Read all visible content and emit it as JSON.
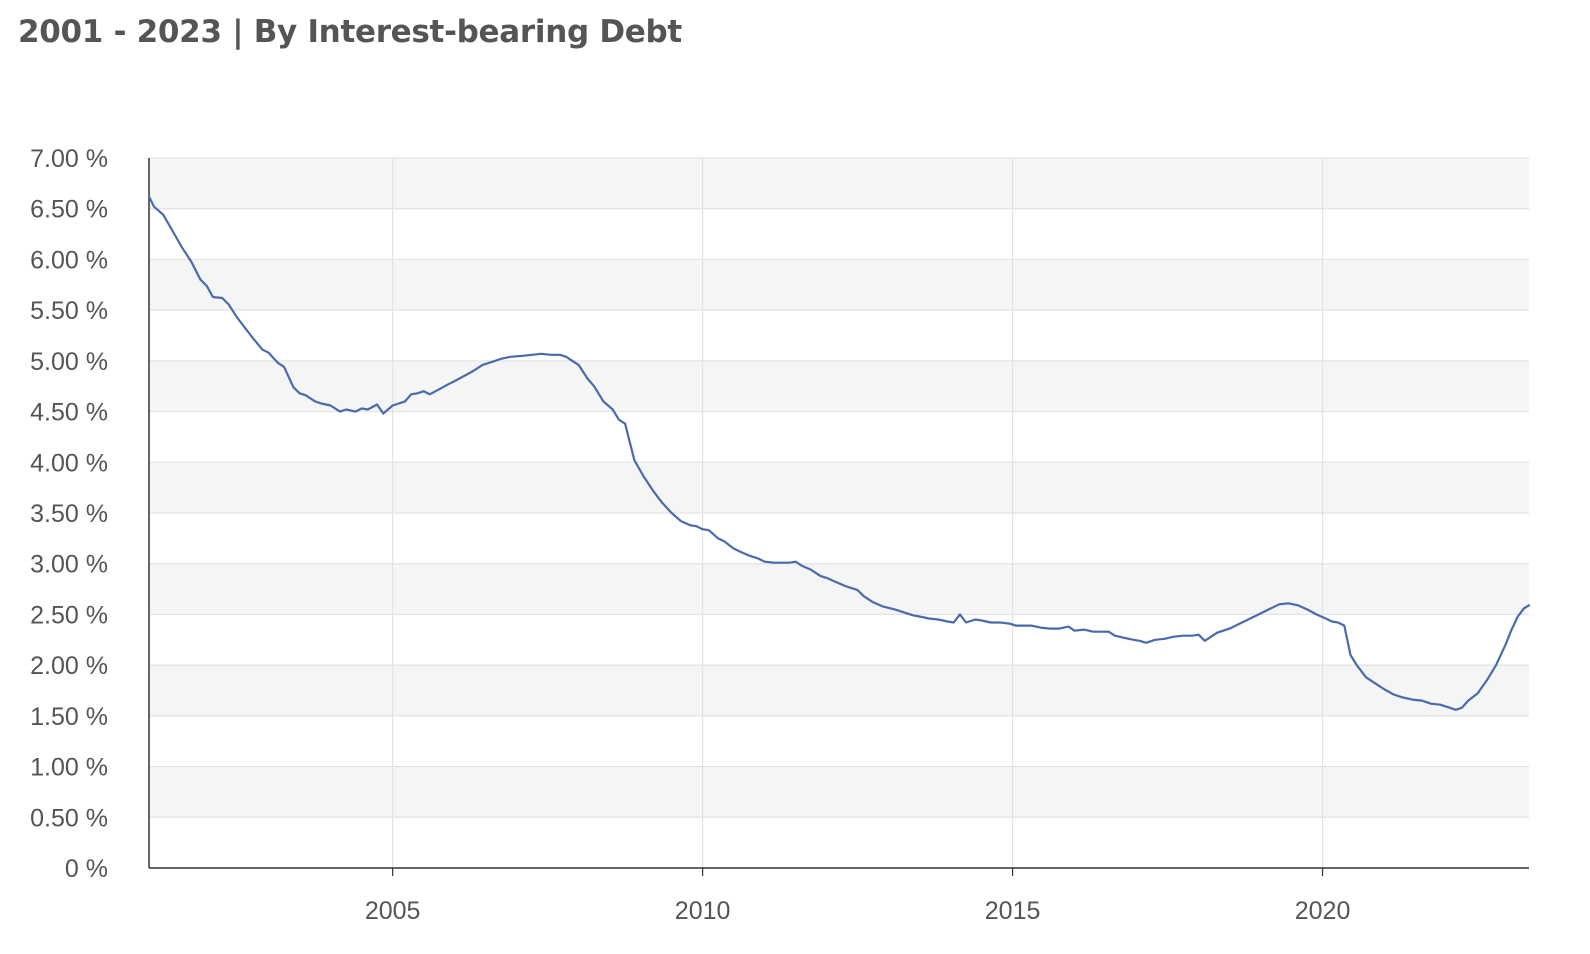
{
  "title": "2001 - 2023 | By Interest-bearing Debt",
  "colors": {
    "line": "#4a6aab",
    "band": "#f5f5f5",
    "grid": "#e3e3e3",
    "axis": "#333333",
    "text": "#555555"
  },
  "chart_data": {
    "type": "line",
    "title": "2001 - 2023 | By Interest-bearing Debt",
    "xlabel": "",
    "ylabel": "",
    "xlim": [
      2001.07,
      2023.33
    ],
    "ylim": [
      0,
      7.0
    ],
    "y_ticks": [
      0,
      0.5,
      1.0,
      1.5,
      2.0,
      2.5,
      3.0,
      3.5,
      4.0,
      4.5,
      5.0,
      5.5,
      6.0,
      6.5,
      7.0
    ],
    "y_tick_labels": [
      "0 %",
      "0.50 %",
      "1.00 %",
      "1.50 %",
      "2.00 %",
      "2.50 %",
      "3.00 %",
      "3.50 %",
      "4.00 %",
      "4.50 %",
      "5.00 %",
      "5.50 %",
      "6.00 %",
      "6.50 %",
      "7.00 %"
    ],
    "x_ticks": [
      2005,
      2010,
      2015,
      2020
    ],
    "x_tick_labels": [
      "2005",
      "2010",
      "2015",
      "2020"
    ],
    "grid": true,
    "alternating_bands": true,
    "legend": "none",
    "series": [
      {
        "x": [
          2001.07,
          2001.15,
          2001.3,
          2001.45,
          2001.6,
          2001.75,
          2001.9,
          2002.0,
          2002.1,
          2002.25,
          2002.35,
          2002.5,
          2002.6,
          2002.75,
          2002.9,
          2003.0,
          2003.15,
          2003.25,
          2003.4,
          2003.5,
          2003.6,
          2003.75,
          2003.85,
          2004.0,
          2004.15,
          2004.25,
          2004.4,
          2004.5,
          2004.6,
          2004.75,
          2004.85,
          2005.0,
          2005.1,
          2005.2,
          2005.3,
          2005.4,
          2005.5,
          2005.6,
          2005.75,
          2005.9,
          2006.0,
          2006.15,
          2006.3,
          2006.45,
          2006.6,
          2006.75,
          2006.9,
          2007.1,
          2007.25,
          2007.4,
          2007.55,
          2007.7,
          2007.8,
          2007.9,
          2008.0,
          2008.15,
          2008.25,
          2008.4,
          2008.55,
          2008.65,
          2008.75,
          2008.9,
          2009.05,
          2009.2,
          2009.35,
          2009.5,
          2009.65,
          2009.8,
          2009.9,
          2010.0,
          2010.1,
          2010.25,
          2010.35,
          2010.5,
          2010.6,
          2010.75,
          2010.9,
          2011.0,
          2011.15,
          2011.3,
          2011.4,
          2011.5,
          2011.6,
          2011.75,
          2011.9,
          2012.0,
          2012.15,
          2012.3,
          2012.5,
          2012.6,
          2012.75,
          2012.9,
          2013.1,
          2013.25,
          2013.4,
          2013.5,
          2013.65,
          2013.8,
          2013.95,
          2014.05,
          2014.15,
          2014.25,
          2014.4,
          2014.5,
          2014.65,
          2014.8,
          2014.95,
          2015.05,
          2015.15,
          2015.3,
          2015.45,
          2015.6,
          2015.75,
          2015.9,
          2016.0,
          2016.15,
          2016.3,
          2016.4,
          2016.55,
          2016.65,
          2016.8,
          2016.95,
          2017.05,
          2017.15,
          2017.3,
          2017.45,
          2017.6,
          2017.75,
          2017.9,
          2018.0,
          2018.1,
          2018.3,
          2018.5,
          2018.7,
          2018.9,
          2019.1,
          2019.3,
          2019.45,
          2019.6,
          2019.75,
          2019.9,
          2020.05,
          2020.15,
          2020.25,
          2020.35,
          2020.45,
          2020.55,
          2020.7,
          2020.85,
          2021.0,
          2021.15,
          2021.3,
          2021.45,
          2021.6,
          2021.75,
          2021.9,
          2022.05,
          2022.15,
          2022.25,
          2022.35,
          2022.5,
          2022.65,
          2022.8,
          2022.95,
          2023.05,
          2023.15,
          2023.25,
          2023.33
        ],
        "y": [
          6.62,
          6.52,
          6.44,
          6.28,
          6.12,
          5.98,
          5.8,
          5.74,
          5.63,
          5.62,
          5.56,
          5.42,
          5.34,
          5.22,
          5.11,
          5.08,
          4.98,
          4.94,
          4.74,
          4.68,
          4.66,
          4.6,
          4.58,
          4.56,
          4.5,
          4.52,
          4.5,
          4.53,
          4.52,
          4.57,
          4.48,
          4.56,
          4.58,
          4.6,
          4.67,
          4.68,
          4.7,
          4.67,
          4.72,
          4.77,
          4.8,
          4.85,
          4.9,
          4.96,
          4.99,
          5.02,
          5.04,
          5.05,
          5.06,
          5.07,
          5.06,
          5.06,
          5.04,
          5.0,
          4.96,
          4.82,
          4.75,
          4.6,
          4.52,
          4.42,
          4.38,
          4.02,
          3.86,
          3.72,
          3.6,
          3.5,
          3.42,
          3.38,
          3.37,
          3.34,
          3.33,
          3.25,
          3.22,
          3.15,
          3.12,
          3.08,
          3.05,
          3.02,
          3.01,
          3.01,
          3.01,
          3.02,
          2.98,
          2.94,
          2.88,
          2.86,
          2.82,
          2.78,
          2.74,
          2.68,
          2.62,
          2.58,
          2.55,
          2.52,
          2.49,
          2.48,
          2.46,
          2.45,
          2.43,
          2.42,
          2.5,
          2.42,
          2.45,
          2.44,
          2.42,
          2.42,
          2.41,
          2.39,
          2.39,
          2.39,
          2.37,
          2.36,
          2.36,
          2.38,
          2.34,
          2.35,
          2.33,
          2.33,
          2.33,
          2.29,
          2.27,
          2.25,
          2.24,
          2.22,
          2.25,
          2.26,
          2.28,
          2.29,
          2.29,
          2.3,
          2.24,
          2.32,
          2.36,
          2.42,
          2.48,
          2.54,
          2.6,
          2.61,
          2.59,
          2.55,
          2.5,
          2.46,
          2.43,
          2.42,
          2.39,
          2.1,
          2.0,
          1.88,
          1.82,
          1.76,
          1.71,
          1.68,
          1.66,
          1.65,
          1.62,
          1.61,
          1.58,
          1.56,
          1.58,
          1.65,
          1.72,
          1.85,
          2.0,
          2.2,
          2.35,
          2.48,
          2.56,
          2.59
        ]
      }
    ]
  }
}
